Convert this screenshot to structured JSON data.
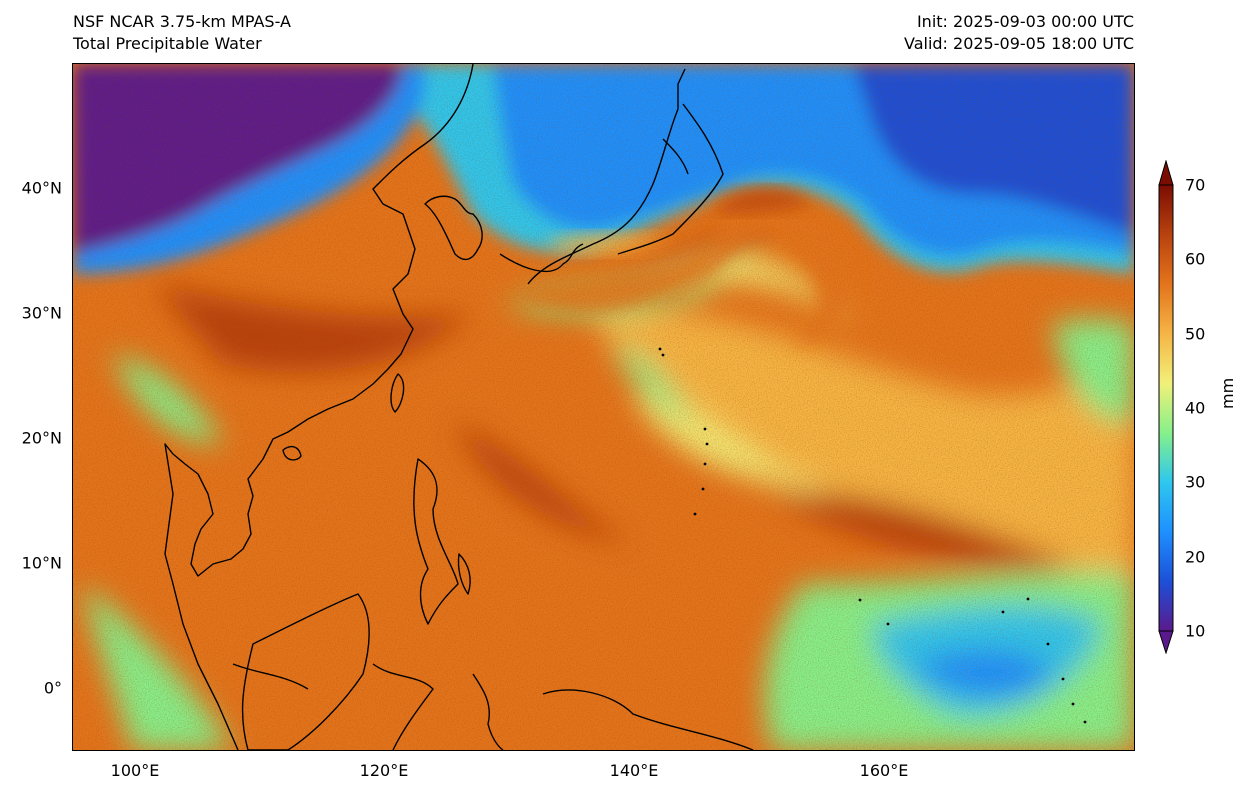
{
  "header": {
    "model": "NSF NCAR 3.75-km MPAS-A",
    "field": "Total Precipitable Water",
    "init": "Init: 2025-09-03 00:00 UTC",
    "valid": "Valid: 2025-09-05 18:00 UTC"
  },
  "axes": {
    "lat_labels": [
      "40°N",
      "30°N",
      "20°N",
      "10°N",
      "0°"
    ],
    "lon_labels": [
      "100°E",
      "120°E",
      "140°E",
      "160°E"
    ]
  },
  "colorbar": {
    "unit": "mm",
    "ticks": [
      "70",
      "60",
      "50",
      "40",
      "30",
      "20",
      "10"
    ],
    "min": 10,
    "max": 70,
    "extend": "both",
    "colors": [
      "#5b1a8c",
      "#1d4fd8",
      "#1e90ff",
      "#2ec7ee",
      "#86f08a",
      "#f2f07a",
      "#f5b545",
      "#e3741c",
      "#b8420f",
      "#7a0d02"
    ]
  }
}
